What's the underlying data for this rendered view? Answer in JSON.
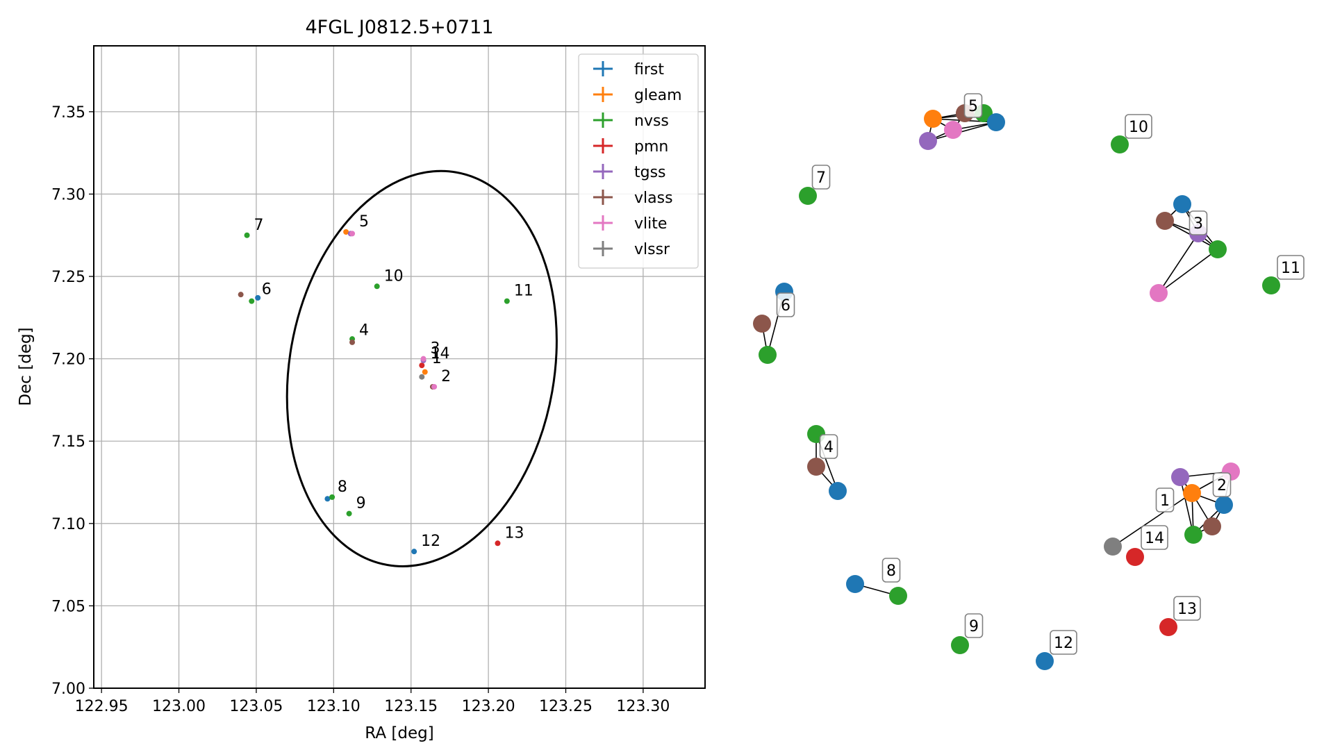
{
  "chart_data": [
    {
      "type": "scatter",
      "title": "4FGL J0812.5+0711",
      "xlabel": "RA [deg]",
      "ylabel": "Dec [deg]",
      "xlim": [
        122.945,
        123.34
      ],
      "ylim": [
        7.0,
        7.39
      ],
      "xticks": [
        "122.95",
        "123.00",
        "123.05",
        "123.10",
        "123.15",
        "123.20",
        "123.25",
        "123.30"
      ],
      "yticks": [
        "7.00",
        "7.05",
        "7.10",
        "7.15",
        "7.20",
        "7.25",
        "7.30",
        "7.35"
      ],
      "grid": true,
      "legend_position": "top-right",
      "series": [
        {
          "name": "first",
          "color": "#1f77b4",
          "points": [
            [
              123.051,
              7.237
            ],
            [
              123.096,
              7.115
            ],
            [
              123.152,
              7.083
            ]
          ]
        },
        {
          "name": "gleam",
          "color": "#ff7f0e",
          "points": [
            [
              123.108,
              7.277
            ],
            [
              123.159,
              7.192
            ]
          ]
        },
        {
          "name": "nvss",
          "color": "#2ca02c",
          "points": [
            [
              123.044,
              7.275
            ],
            [
              123.047,
              7.235
            ],
            [
              123.112,
              7.212
            ],
            [
              123.099,
              7.116
            ],
            [
              123.11,
              7.106
            ],
            [
              123.128,
              7.244
            ],
            [
              123.212,
              7.235
            ]
          ]
        },
        {
          "name": "pmn",
          "color": "#d62728",
          "points": [
            [
              123.157,
              7.196
            ],
            [
              123.206,
              7.088
            ]
          ]
        },
        {
          "name": "tgss",
          "color": "#9467bd",
          "points": [
            [
              123.111,
              7.276
            ],
            [
              123.158,
              7.199
            ]
          ]
        },
        {
          "name": "vlass",
          "color": "#8c564b",
          "points": [
            [
              123.04,
              7.239
            ],
            [
              123.112,
              7.21
            ],
            [
              123.164,
              7.183
            ]
          ]
        },
        {
          "name": "vlite",
          "color": "#e377c2",
          "points": [
            [
              123.112,
              7.276
            ],
            [
              123.158,
              7.2
            ],
            [
              123.165,
              7.183
            ]
          ]
        },
        {
          "name": "vlssr",
          "color": "#7f7f7f",
          "points": [
            [
              123.157,
              7.189
            ]
          ]
        }
      ],
      "labels": [
        {
          "text": "1",
          "x": 123.159,
          "y": 7.194
        },
        {
          "text": "2",
          "x": 123.165,
          "y": 7.183
        },
        {
          "text": "3",
          "x": 123.158,
          "y": 7.2
        },
        {
          "text": "14",
          "x": 123.158,
          "y": 7.197
        },
        {
          "text": "4",
          "x": 123.112,
          "y": 7.211
        },
        {
          "text": "5",
          "x": 123.112,
          "y": 7.277
        },
        {
          "text": "6",
          "x": 123.049,
          "y": 7.236
        },
        {
          "text": "7",
          "x": 123.044,
          "y": 7.275
        },
        {
          "text": "8",
          "x": 123.098,
          "y": 7.116
        },
        {
          "text": "9",
          "x": 123.11,
          "y": 7.106
        },
        {
          "text": "10",
          "x": 123.128,
          "y": 7.244
        },
        {
          "text": "11",
          "x": 123.212,
          "y": 7.235
        },
        {
          "text": "12",
          "x": 123.152,
          "y": 7.083
        },
        {
          "text": "13",
          "x": 123.206,
          "y": 7.088
        }
      ],
      "ellipse": {
        "ra": 123.157,
        "dec": 7.194,
        "semi_ra": 0.0855,
        "semi_dec": 0.121,
        "tilt_deg": 10
      }
    },
    {
      "type": "network",
      "node_colors": {
        "first": "#1f77b4",
        "gleam": "#ff7f0e",
        "nvss": "#2ca02c",
        "pmn": "#d62728",
        "tgss": "#9467bd",
        "vlass": "#8c564b",
        "vlite": "#e377c2",
        "vlssr": "#7f7f7f"
      },
      "clusters": [
        "1",
        "2",
        "3",
        "4",
        "5",
        "6",
        "7",
        "8",
        "9",
        "10",
        "11",
        "12",
        "13",
        "14"
      ]
    }
  ]
}
